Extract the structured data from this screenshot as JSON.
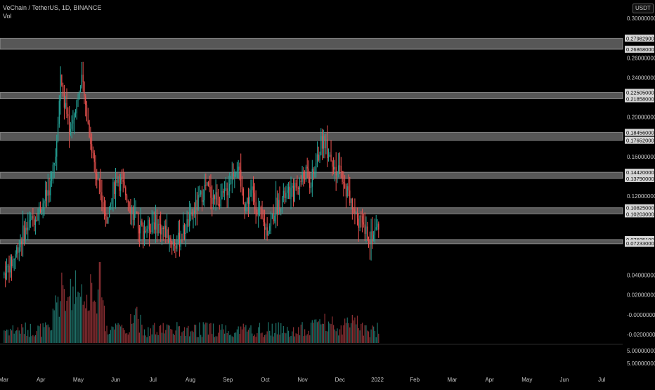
{
  "header": {
    "symbol_title": "VeChain / TetherUS, 1D, BINANCE",
    "volume_label": "Vol",
    "currency_chip": "USDT"
  },
  "colors": {
    "background": "#000000",
    "up_candle": "#26a69a",
    "down_candle": "#ef5350",
    "up_volume": "#1e6e66",
    "down_volume": "#8a2f33",
    "zone_fill": "#9e9e9e",
    "price_tag_fill": "#d6d6d6",
    "price_tag_text": "#000000",
    "axis_text": "#c8c8c8"
  },
  "chart_data": {
    "type": "candlestick",
    "title": "VeChain / TetherUS, 1D, BINANCE",
    "ylim": [
      -0.03,
      0.31
    ],
    "y_ticks": [
      {
        "value": 0.3,
        "label": "0.30000000"
      },
      {
        "value": 0.26,
        "label": "0.26000000"
      },
      {
        "value": 0.24,
        "label": "0.24000000"
      },
      {
        "value": 0.2,
        "label": "0.20000000"
      },
      {
        "value": 0.16,
        "label": "0.16000000"
      },
      {
        "value": 0.12,
        "label": "0.12000000"
      },
      {
        "value": 0.04,
        "label": "0.04000000"
      },
      {
        "value": 0.02,
        "label": "0.02000000"
      },
      {
        "value": 0.0,
        "label": "-0.00000000"
      },
      {
        "value": -0.02,
        "label": "-0.02000000"
      }
    ],
    "volume_ticks": [
      {
        "label": "5.00000000",
        "slot": 0
      },
      {
        "label": "5.00000000",
        "slot": 1
      }
    ],
    "x_labels": [
      {
        "label": "Mar",
        "month": 0
      },
      {
        "label": "Apr",
        "month": 1
      },
      {
        "label": "May",
        "month": 2
      },
      {
        "label": "Jun",
        "month": 3
      },
      {
        "label": "Jul",
        "month": 4
      },
      {
        "label": "Aug",
        "month": 5
      },
      {
        "label": "Sep",
        "month": 6
      },
      {
        "label": "Oct",
        "month": 7
      },
      {
        "label": "Nov",
        "month": 8
      },
      {
        "label": "Dec",
        "month": 9
      },
      {
        "label": "2022",
        "month": 10
      },
      {
        "label": "Feb",
        "month": 11
      },
      {
        "label": "Mar",
        "month": 12
      },
      {
        "label": "Apr",
        "month": 13
      },
      {
        "label": "May",
        "month": 14
      },
      {
        "label": "Jun",
        "month": 15
      },
      {
        "label": "Jul",
        "month": 16
      }
    ],
    "zones": [
      {
        "top": 0.279829,
        "bottom": 0.26868,
        "top_label": "0.27982900",
        "bottom_label": "0.26868000"
      },
      {
        "top": 0.22505,
        "bottom": 0.21858,
        "top_label": "0.22505000",
        "bottom_label": "0.21858000"
      },
      {
        "top": 0.18456,
        "bottom": 0.17652,
        "top_label": "0.18456000",
        "bottom_label": "0.17652000"
      },
      {
        "top": 0.1442,
        "bottom": 0.1379,
        "top_label": "0.14420000",
        "bottom_label": "0.13790000"
      },
      {
        "top": 0.10825,
        "bottom": 0.10203,
        "top_label": "0.10825000",
        "bottom_label": "0.10203000"
      },
      {
        "top": 0.076051,
        "bottom": 0.07233,
        "top_label": "0.07605100",
        "bottom_label": "0.07233000"
      }
    ],
    "price_path": [
      [
        0.0,
        0.04
      ],
      [
        0.25,
        0.055
      ],
      [
        0.5,
        0.08
      ],
      [
        0.75,
        0.095
      ],
      [
        0.95,
        0.105
      ],
      [
        1.25,
        0.13
      ],
      [
        1.45,
        0.18
      ],
      [
        1.52,
        0.245
      ],
      [
        1.62,
        0.215
      ],
      [
        1.78,
        0.185
      ],
      [
        1.98,
        0.22
      ],
      [
        2.1,
        0.235
      ],
      [
        2.35,
        0.17
      ],
      [
        2.6,
        0.125
      ],
      [
        2.8,
        0.095
      ],
      [
        2.95,
        0.13
      ],
      [
        3.05,
        0.14
      ],
      [
        3.3,
        0.12
      ],
      [
        3.55,
        0.095
      ],
      [
        3.75,
        0.085
      ],
      [
        4.0,
        0.095
      ],
      [
        4.3,
        0.085
      ],
      [
        4.6,
        0.07
      ],
      [
        4.9,
        0.09
      ],
      [
        5.1,
        0.105
      ],
      [
        5.4,
        0.13
      ],
      [
        5.6,
        0.12
      ],
      [
        5.85,
        0.115
      ],
      [
        6.15,
        0.145
      ],
      [
        6.25,
        0.15
      ],
      [
        6.45,
        0.11
      ],
      [
        6.65,
        0.125
      ],
      [
        6.85,
        0.1
      ],
      [
        7.05,
        0.085
      ],
      [
        7.3,
        0.11
      ],
      [
        7.5,
        0.12
      ],
      [
        7.75,
        0.125
      ],
      [
        7.95,
        0.135
      ],
      [
        8.1,
        0.145
      ],
      [
        8.2,
        0.13
      ],
      [
        8.45,
        0.165
      ],
      [
        8.55,
        0.18
      ],
      [
        8.7,
        0.165
      ],
      [
        8.85,
        0.15
      ],
      [
        9.05,
        0.14
      ],
      [
        9.25,
        0.12
      ],
      [
        9.45,
        0.1
      ],
      [
        9.65,
        0.085
      ],
      [
        9.8,
        0.08
      ],
      [
        9.95,
        0.085
      ],
      [
        10.05,
        0.093
      ]
    ]
  }
}
